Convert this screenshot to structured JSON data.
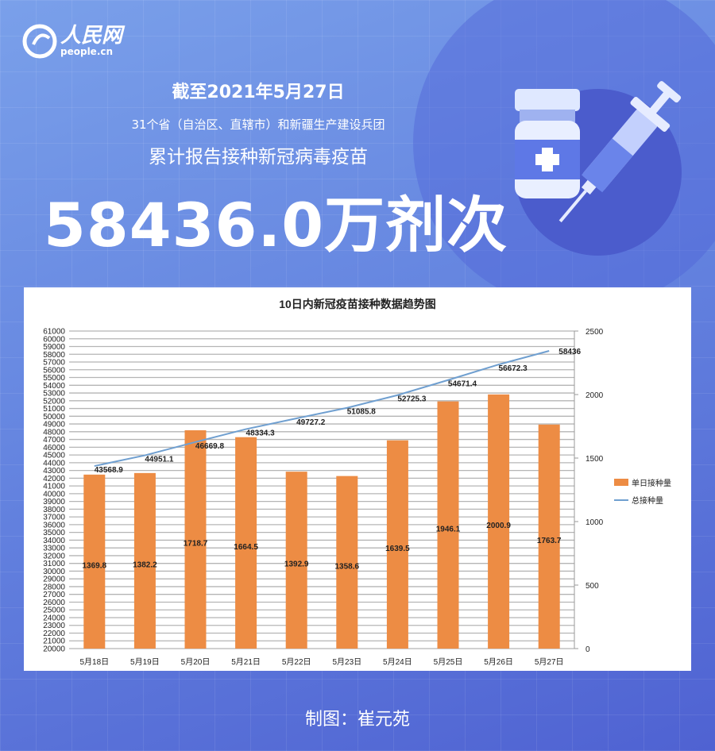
{
  "header": {
    "logo_text": "人民网",
    "logo_sub": "people.cn",
    "date": "截至2021年5月27日",
    "subtitle": "31个省（自治区、直辖市）和新疆生产建设兵团",
    "subtitle2": "累计报告接种新冠病毒疫苗",
    "total": "58436.0万剂次"
  },
  "illustration": {
    "icon": "vaccine-vial-syringe-icon"
  },
  "credit": "制图：崔元苑",
  "chart_data": {
    "type": "bar+line",
    "title": "10日内新冠疫苗接种数据趋势图",
    "categories": [
      "5月18日",
      "5月19日",
      "5月20日",
      "5月21日",
      "5月22日",
      "5月23日",
      "5月24日",
      "5月25日",
      "5月26日",
      "5月27日"
    ],
    "series": [
      {
        "name": "单日接种量",
        "type": "bar",
        "axis": "right",
        "color": "#ed8c44",
        "values": [
          1369.8,
          1382.2,
          1718.7,
          1664.5,
          1392.9,
          1358.6,
          1639.5,
          1946.1,
          2000.9,
          1763.7
        ],
        "labels": [
          "1369.8",
          "1382.2",
          "1718.7",
          "1664.5",
          "1392.9",
          "1358.6",
          "1639.5",
          "1946.1",
          "2000.9",
          "1763.7"
        ]
      },
      {
        "name": "总接种量",
        "type": "line",
        "axis": "left",
        "color": "#6f9fd0",
        "values": [
          43568.9,
          44951.1,
          46669.8,
          48334.3,
          49727.2,
          51085.8,
          52725.3,
          54671.4,
          56672.3,
          58436
        ],
        "labels": [
          "43568.9",
          "44951.1",
          "46669.8",
          "48334.3",
          "49727.2",
          "51085.8",
          "52725.3",
          "54671.4",
          "56672.3",
          "58436"
        ]
      }
    ],
    "left_axis": {
      "min": 20000,
      "max": 61000,
      "step": 1000
    },
    "right_axis": {
      "min": 0,
      "max": 2500,
      "step": 500
    },
    "grid": true,
    "legend": "right"
  }
}
